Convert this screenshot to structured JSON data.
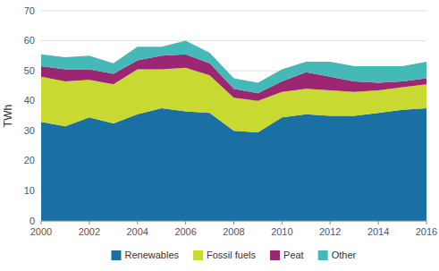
{
  "chart_data": {
    "type": "area",
    "stacked": true,
    "y_label": "TWh",
    "x": [
      2000,
      2001,
      2002,
      2003,
      2004,
      2005,
      2006,
      2007,
      2008,
      2009,
      2010,
      2011,
      2012,
      2013,
      2014,
      2015,
      2016
    ],
    "series": [
      {
        "name": "Renewables",
        "color": "#1a6fa3",
        "values": [
          33,
          31.5,
          34.5,
          32.5,
          35.5,
          37.5,
          36.5,
          36,
          30,
          29.5,
          34.5,
          35.5,
          35,
          35,
          36,
          37,
          37.5
        ]
      },
      {
        "name": "Fossil fuels",
        "color": "#c8d932",
        "values": [
          15,
          15,
          12.5,
          13,
          15,
          13,
          14.5,
          12.5,
          11,
          10.5,
          8.5,
          8.5,
          8.5,
          8,
          7.5,
          7.5,
          8
        ]
      },
      {
        "name": "Peat",
        "color": "#9b2672",
        "values": [
          3.5,
          4,
          3.5,
          3.5,
          3,
          4.5,
          4.5,
          4,
          3,
          2.5,
          3.5,
          5.5,
          4.5,
          3.5,
          2.5,
          2,
          2
        ]
      },
      {
        "name": "Other",
        "color": "#45b8b8",
        "values": [
          4,
          4,
          4.5,
          3.5,
          4.5,
          3,
          4.5,
          3.5,
          3.5,
          3.5,
          4,
          3.5,
          5,
          5,
          5.5,
          5,
          5.5
        ]
      }
    ],
    "xlim": [
      2000,
      2016
    ],
    "xticks": [
      2000,
      2002,
      2004,
      2006,
      2008,
      2010,
      2012,
      2014,
      2016
    ],
    "ylim": [
      0,
      70
    ],
    "yticks": [
      0,
      10,
      20,
      30,
      40,
      50,
      60,
      70
    ],
    "grid": true,
    "legend": "bottom"
  }
}
